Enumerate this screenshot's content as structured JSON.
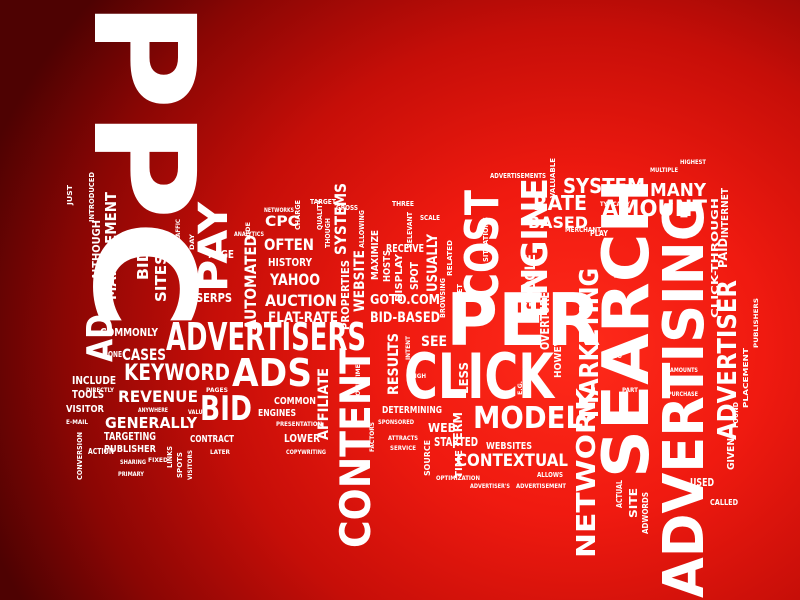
{
  "title": "PPC word cloud",
  "colors": {
    "background_center": "#ff2a1a",
    "background_edge": "#4e0202",
    "text": "#ffffff"
  },
  "words": {
    "ppc": "PPC",
    "search": "SEARCH",
    "advertising": "ADVERTISING",
    "per": "PER",
    "click": "CLICK",
    "cost": "COST",
    "advertisers": "ADVERTISERS",
    "content": "CONTENT",
    "ads": "ADS",
    "bid": "BID",
    "engine": "ENGINE",
    "pay": "PAY",
    "keyword": "KEYWORD",
    "model": "MODEL",
    "network": "NETWORK",
    "marketing": "MARKETING",
    "advertiser": "ADVERTISER",
    "contextual": "CONTEXTUAL",
    "amount": "AMOUNT",
    "system": "SYSTEM",
    "rate": "RATE",
    "based": "BASED",
    "many": "MANY",
    "ad": "AD",
    "management": "MANAGEMENT",
    "although": "ALTHOUGH",
    "bids": "BIDS",
    "sites": "SITES",
    "revenue": "REVENUE",
    "generally": "GENERALLY",
    "cases": "CASES",
    "commonly": "COMMONLY",
    "include": "INCLUDE",
    "tools": "TOOLS",
    "visitor": "VISITOR",
    "targeting": "TARGETING",
    "publisher": "PUBLISHER",
    "contract": "CONTRACT",
    "automated": "AUTOMATED",
    "auction": "AUCTION",
    "often": "OFTEN",
    "history": "HISTORY",
    "yahoo": "YAHOO",
    "flat_rate": "FLAT-RATE",
    "bid_based": "BID-BASED",
    "cpc": "CPC",
    "systems": "SYSTEMS",
    "website": "WEBSITE",
    "properties": "PROPERTIES",
    "maximize": "MAXIMIZE",
    "display": "DISPLAY",
    "spot": "SPOT",
    "hosts": "HOSTS",
    "receive": "RECEIVE",
    "usually": "USUALLY",
    "goto_com": "GOTO.COM",
    "results": "RESULTS",
    "see": "SEE",
    "less": "LESS",
    "google": "GOOGLE",
    "overture": "OVERTURE",
    "however": "HOWEVER",
    "affiliate": "AFFILIATE",
    "engines": "ENGINES",
    "common": "COMMON",
    "lower": "LOWER",
    "determining": "DETERMINING",
    "web": "WEB",
    "started": "STARTED",
    "websites": "WEBSITES",
    "term": "TERM",
    "time": "TIME",
    "used": "USED",
    "given": "GIVEN",
    "paid": "PAID",
    "internet": "INTERNET",
    "click_through": "CLICK-THROUGH",
    "serps": "SERPS",
    "page": "PAGE",
    "one": "ONE",
    "advertisements": "ADVERTISEMENTS",
    "typically": "TYPICALLY",
    "merchant": "MERCHANT",
    "play": "PLAY",
    "multiple": "MULTIPLE",
    "highest": "HIGHEST",
    "valuable": "VALUABLE",
    "situations": "SITUATIONS",
    "set": "SET",
    "browsing": "BROWSING",
    "related": "RELATED",
    "allows": "ALLOWS",
    "advertisement": "ADVERTISEMENT",
    "advertisers_poss": "ADVERTISER'S",
    "optimization": "OPTIMIZATION",
    "source": "SOURCE",
    "site": "SITE",
    "adwords": "ADWORDS",
    "actual": "ACTUAL",
    "called": "CALLED",
    "found": "FOUND",
    "placement": "PLACEMENT",
    "publishers": "PUBLISHERS",
    "purchase": "PURCHASE",
    "amounts": "AMOUNTS",
    "part": "PART",
    "also": "ALSO",
    "rates": "RATES",
    "relevant": "RELEVANT",
    "usage": "USAGE",
    "just": "JUST",
    "introduced": "INTRODUCED",
    "directly": "DIRECTLY",
    "e_mail": "E-MAIL",
    "action": "ACTION",
    "conversion": "CONVERSION",
    "sharing": "SHARING",
    "primary": "PRIMARY",
    "fixed": "FIXED",
    "links": "LINKS",
    "spots": "SPOTS",
    "visitors": "VISITORS",
    "later": "LATER",
    "anywhere": "ANYWHERE",
    "value": "VALUE",
    "pages": "PAGES",
    "day": "DAY",
    "hide": "HIDE",
    "analytics": "ANALYTICS",
    "charge": "CHARGE",
    "networks": "NETWORKS",
    "quality": "QUALITY",
    "target": "TARGET",
    "gross": "GROSS",
    "three": "THREE",
    "scale": "SCALE",
    "allowing": "ALLOWING",
    "traffic": "TRAFFIC",
    "though": "THOUGH",
    "presentation": "PRESENTATION",
    "copywriting": "COPYWRITING",
    "sometimes": "SOMETIMES",
    "factors": "FACTORS",
    "sponsored": "SPONSORED",
    "attracts": "ATTRACTS",
    "service": "SERVICE",
    "high": "HIGH",
    "intent": "INTENT",
    "eg": "E.G."
  }
}
